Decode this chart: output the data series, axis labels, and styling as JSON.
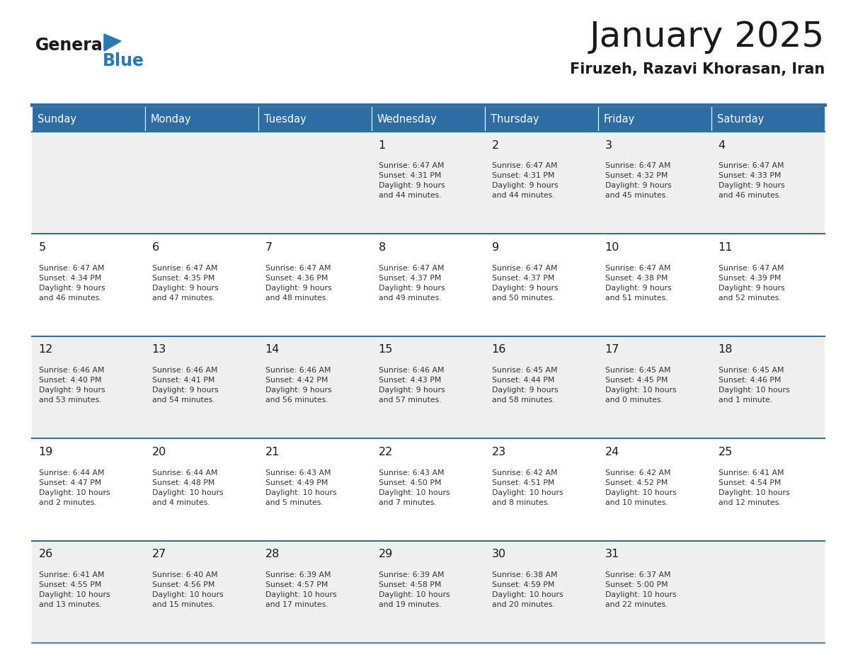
{
  "title": "January 2025",
  "subtitle": "Firuzeh, Razavi Khorasan, Iran",
  "header_color": "#2E6DA4",
  "header_text_color": "#FFFFFF",
  "cell_bg_even": "#EFEFEF",
  "cell_bg_odd": "#FFFFFF",
  "day_headers": [
    "Sunday",
    "Monday",
    "Tuesday",
    "Wednesday",
    "Thursday",
    "Friday",
    "Saturday"
  ],
  "title_color": "#1A1A1A",
  "subtitle_color": "#1A1A1A",
  "line_color": "#2E6DA4",
  "day_num_color": "#1A1A1A",
  "cell_text_color": "#333333",
  "logo_general_color": "#1A1A1A",
  "logo_blue_color": "#2779B8",
  "calendar_data": [
    [
      {
        "day": null,
        "text": ""
      },
      {
        "day": null,
        "text": ""
      },
      {
        "day": null,
        "text": ""
      },
      {
        "day": 1,
        "text": "Sunrise: 6:47 AM\nSunset: 4:31 PM\nDaylight: 9 hours\nand 44 minutes."
      },
      {
        "day": 2,
        "text": "Sunrise: 6:47 AM\nSunset: 4:31 PM\nDaylight: 9 hours\nand 44 minutes."
      },
      {
        "day": 3,
        "text": "Sunrise: 6:47 AM\nSunset: 4:32 PM\nDaylight: 9 hours\nand 45 minutes."
      },
      {
        "day": 4,
        "text": "Sunrise: 6:47 AM\nSunset: 4:33 PM\nDaylight: 9 hours\nand 46 minutes."
      }
    ],
    [
      {
        "day": 5,
        "text": "Sunrise: 6:47 AM\nSunset: 4:34 PM\nDaylight: 9 hours\nand 46 minutes."
      },
      {
        "day": 6,
        "text": "Sunrise: 6:47 AM\nSunset: 4:35 PM\nDaylight: 9 hours\nand 47 minutes."
      },
      {
        "day": 7,
        "text": "Sunrise: 6:47 AM\nSunset: 4:36 PM\nDaylight: 9 hours\nand 48 minutes."
      },
      {
        "day": 8,
        "text": "Sunrise: 6:47 AM\nSunset: 4:37 PM\nDaylight: 9 hours\nand 49 minutes."
      },
      {
        "day": 9,
        "text": "Sunrise: 6:47 AM\nSunset: 4:37 PM\nDaylight: 9 hours\nand 50 minutes."
      },
      {
        "day": 10,
        "text": "Sunrise: 6:47 AM\nSunset: 4:38 PM\nDaylight: 9 hours\nand 51 minutes."
      },
      {
        "day": 11,
        "text": "Sunrise: 6:47 AM\nSunset: 4:39 PM\nDaylight: 9 hours\nand 52 minutes."
      }
    ],
    [
      {
        "day": 12,
        "text": "Sunrise: 6:46 AM\nSunset: 4:40 PM\nDaylight: 9 hours\nand 53 minutes."
      },
      {
        "day": 13,
        "text": "Sunrise: 6:46 AM\nSunset: 4:41 PM\nDaylight: 9 hours\nand 54 minutes."
      },
      {
        "day": 14,
        "text": "Sunrise: 6:46 AM\nSunset: 4:42 PM\nDaylight: 9 hours\nand 56 minutes."
      },
      {
        "day": 15,
        "text": "Sunrise: 6:46 AM\nSunset: 4:43 PM\nDaylight: 9 hours\nand 57 minutes."
      },
      {
        "day": 16,
        "text": "Sunrise: 6:45 AM\nSunset: 4:44 PM\nDaylight: 9 hours\nand 58 minutes."
      },
      {
        "day": 17,
        "text": "Sunrise: 6:45 AM\nSunset: 4:45 PM\nDaylight: 10 hours\nand 0 minutes."
      },
      {
        "day": 18,
        "text": "Sunrise: 6:45 AM\nSunset: 4:46 PM\nDaylight: 10 hours\nand 1 minute."
      }
    ],
    [
      {
        "day": 19,
        "text": "Sunrise: 6:44 AM\nSunset: 4:47 PM\nDaylight: 10 hours\nand 2 minutes."
      },
      {
        "day": 20,
        "text": "Sunrise: 6:44 AM\nSunset: 4:48 PM\nDaylight: 10 hours\nand 4 minutes."
      },
      {
        "day": 21,
        "text": "Sunrise: 6:43 AM\nSunset: 4:49 PM\nDaylight: 10 hours\nand 5 minutes."
      },
      {
        "day": 22,
        "text": "Sunrise: 6:43 AM\nSunset: 4:50 PM\nDaylight: 10 hours\nand 7 minutes."
      },
      {
        "day": 23,
        "text": "Sunrise: 6:42 AM\nSunset: 4:51 PM\nDaylight: 10 hours\nand 8 minutes."
      },
      {
        "day": 24,
        "text": "Sunrise: 6:42 AM\nSunset: 4:52 PM\nDaylight: 10 hours\nand 10 minutes."
      },
      {
        "day": 25,
        "text": "Sunrise: 6:41 AM\nSunset: 4:54 PM\nDaylight: 10 hours\nand 12 minutes."
      }
    ],
    [
      {
        "day": 26,
        "text": "Sunrise: 6:41 AM\nSunset: 4:55 PM\nDaylight: 10 hours\nand 13 minutes."
      },
      {
        "day": 27,
        "text": "Sunrise: 6:40 AM\nSunset: 4:56 PM\nDaylight: 10 hours\nand 15 minutes."
      },
      {
        "day": 28,
        "text": "Sunrise: 6:39 AM\nSunset: 4:57 PM\nDaylight: 10 hours\nand 17 minutes."
      },
      {
        "day": 29,
        "text": "Sunrise: 6:39 AM\nSunset: 4:58 PM\nDaylight: 10 hours\nand 19 minutes."
      },
      {
        "day": 30,
        "text": "Sunrise: 6:38 AM\nSunset: 4:59 PM\nDaylight: 10 hours\nand 20 minutes."
      },
      {
        "day": 31,
        "text": "Sunrise: 6:37 AM\nSunset: 5:00 PM\nDaylight: 10 hours\nand 22 minutes."
      },
      {
        "day": null,
        "text": ""
      }
    ]
  ]
}
